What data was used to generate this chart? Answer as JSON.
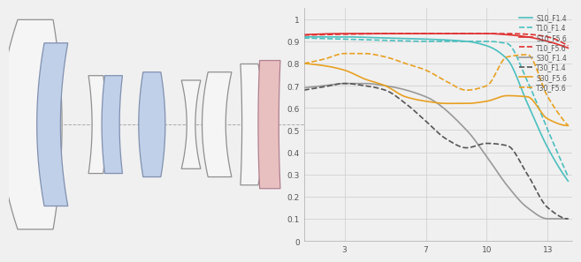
{
  "background_color": "#f0f0f0",
  "chart_bg": "#f0f0f0",
  "x_ticks": [
    3,
    7,
    10,
    13
  ],
  "y_ticks": [
    0,
    0.1,
    0.2,
    0.3,
    0.4,
    0.5,
    0.6,
    0.7,
    0.8,
    0.9,
    1
  ],
  "xlim": [
    1,
    14.2
  ],
  "ylim": [
    0,
    1.05
  ],
  "legend": [
    "S10_F1.4",
    "T10_F1.4",
    "S10_F5.6",
    "T10_F5.6",
    "S30_F1.4",
    "T30_F1.4",
    "S30_F5.6",
    "T30_F5.6"
  ],
  "colors": {
    "cyan": "#4bbfbf",
    "red": "#e03030",
    "gray": "#999999",
    "orange": "#e8a020"
  },
  "curves": {
    "S10_F1.4": {
      "color": "#4bbfbf",
      "dash": false
    },
    "T10_F1.4": {
      "color": "#4bbfbf",
      "dash": true
    },
    "S10_F5.6": {
      "color": "#e03030",
      "dash": false
    },
    "T10_F5.6": {
      "color": "#e03030",
      "dash": true
    },
    "S30_F1.4": {
      "color": "#999999",
      "dash": false
    },
    "T30_F1.4": {
      "color": "#555555",
      "dash": true
    },
    "S30_F5.6": {
      "color": "#e8a020",
      "dash": false
    },
    "T30_F5.6": {
      "color": "#e8a020",
      "dash": true
    }
  },
  "lens_bg": "#f0f0f0"
}
